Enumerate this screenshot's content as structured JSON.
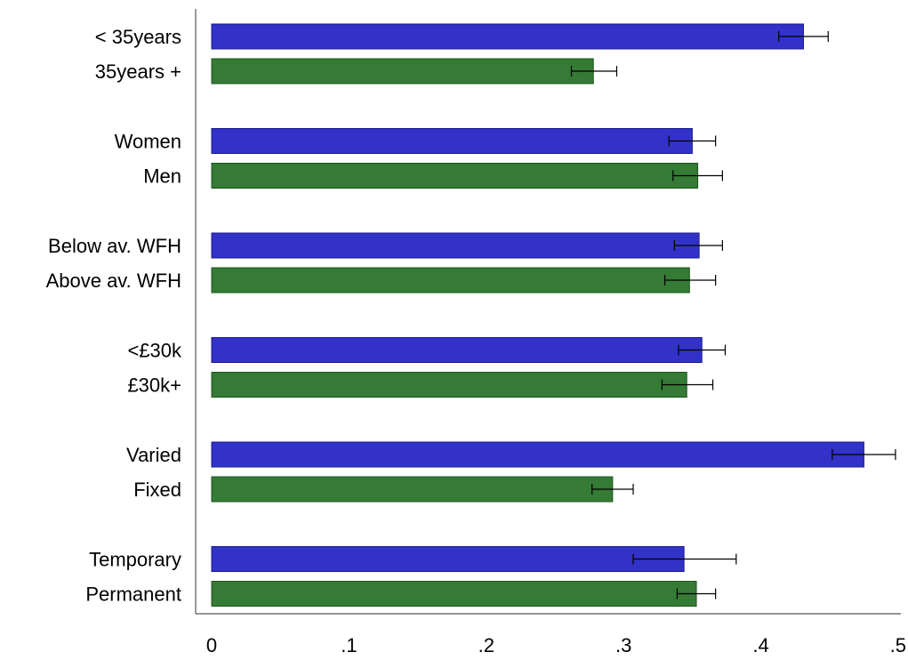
{
  "chart_data": {
    "type": "bar",
    "orientation": "horizontal",
    "title": "",
    "xlabel": "",
    "ylabel": "",
    "xlim": [
      0,
      0.5
    ],
    "grid": false,
    "legend": "none",
    "xticks": [
      "0",
      ".1",
      ".2",
      ".3",
      ".4",
      ".5"
    ],
    "xtick_values": [
      0,
      0.1,
      0.2,
      0.3,
      0.4,
      0.5
    ],
    "colors": {
      "first": "#3232c8",
      "second": "#357a35",
      "first_edge": "#1a1a8c",
      "second_edge": "#1e551e"
    },
    "categories": [
      "< 35years",
      "35years +",
      "Women",
      "Men",
      "Below av. WFH",
      "Above av. WFH",
      "<£30k",
      "£30k+",
      "Varied",
      "Fixed",
      "Temporary",
      "Permanent"
    ],
    "values": [
      0.431,
      0.278,
      0.35,
      0.354,
      0.355,
      0.348,
      0.357,
      0.346,
      0.475,
      0.292,
      0.344,
      0.353
    ],
    "ci_low": [
      0.413,
      0.262,
      0.333,
      0.336,
      0.337,
      0.33,
      0.34,
      0.328,
      0.452,
      0.277,
      0.307,
      0.339
    ],
    "ci_high": [
      0.449,
      0.295,
      0.367,
      0.372,
      0.372,
      0.367,
      0.374,
      0.365,
      0.498,
      0.307,
      0.382,
      0.367
    ],
    "series_index": [
      0,
      1,
      0,
      1,
      0,
      1,
      0,
      1,
      0,
      1,
      0,
      1
    ]
  }
}
